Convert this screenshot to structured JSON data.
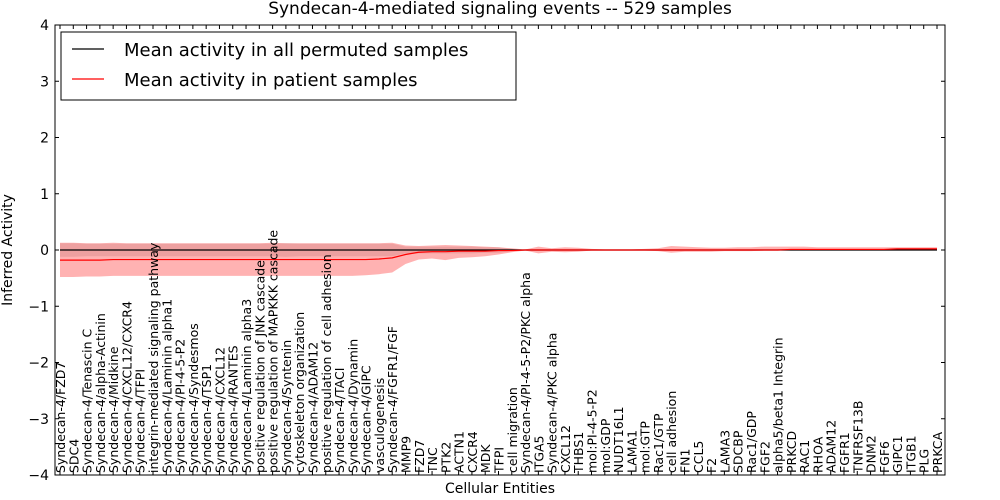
{
  "chart_data": {
    "type": "line",
    "title": "Syndecan-4-mediated signaling events -- 529 samples",
    "xlabel": "Cellular Entities",
    "ylabel": "Inferred Activity",
    "ylim": [
      -4,
      4
    ],
    "yticks": [
      -4,
      -3,
      -2,
      -1,
      0,
      1,
      2,
      3,
      4
    ],
    "ytick_labels": [
      "−4",
      "−3",
      "−2",
      "−1",
      "0",
      "1",
      "2",
      "3",
      "4"
    ],
    "legend_position": "top-left",
    "categories": [
      "Syndecan-4/FZD7",
      "SDC4",
      "Syndecan-4/Tenascin C",
      "Syndecan-4/alpha-Actinin",
      "Syndecan-4/Midkine",
      "Syndecan-4/CXCL12/CXCR4",
      "Syndecan-4/TFPI",
      "integrin-mediated signaling pathway",
      "Syndecan-4/Laminin alpha1",
      "Syndecan-4/PI-4-5-P2",
      "Syndecan-4/Syndesmos",
      "Syndecan-4/TSP1",
      "Syndecan-4/CXCL12",
      "Syndecan-4/RANTES",
      "Syndecan-4/Laminin alpha3",
      "positive regulation of JNK cascade",
      "positive regulation of MAPKKK cascade",
      "Syndecan-4/Syntenin",
      "cytoskeleton organization",
      "Syndecan-4/ADAM12",
      "positive regulation of cell adhesion",
      "Syndecan-4/TACI",
      "Syndecan-4/Dynamin",
      "Syndecan-4/GIPC",
      "vasculogenesis",
      "Syndecan-4/FGFR1/FGF",
      "MMP9",
      "FZD7",
      "TNC",
      "PTK2",
      "ACTN1",
      "CXCR4",
      "MDK",
      "TFPI",
      "cell migration",
      "Syndecan-4/PI-4-5-P2/PKC alpha",
      "ITGA5",
      "Syndecan-4/PKC alpha",
      "CXCL12",
      "THBS1",
      "mol:PI-4-5-P2",
      "mol:GDP",
      "NUDT16L1",
      "LAMA1",
      "mol:GTP",
      "Rac1/GTP",
      "cell adhesion",
      "FN1",
      "CCL5",
      "F2",
      "LAMA3",
      "SDCBP",
      "Rac1/GDP",
      "FGF2",
      "alpha5/beta1 Integrin",
      "PRKCD",
      "RAC1",
      "RHOA",
      "ADAM12",
      "FGFR1",
      "TNFRSF13B",
      "DNM2",
      "FGF6",
      "GIPC1",
      "ITGB1",
      "PLG",
      "PRKCA"
    ],
    "series": [
      {
        "name": "Mean activity in all permuted samples",
        "color": "#000000",
        "values": [
          0.0,
          0.0,
          0.0,
          0.0,
          0.0,
          0.0,
          0.0,
          0.0,
          0.0,
          0.0,
          0.0,
          0.0,
          0.0,
          0.0,
          0.0,
          0.0,
          0.0,
          0.0,
          0.0,
          0.0,
          0.0,
          0.0,
          0.0,
          0.0,
          0.0,
          0.0,
          0.0,
          0.0,
          0.0,
          0.0,
          0.0,
          0.0,
          0.0,
          0.0,
          0.0,
          0.0,
          0.0,
          0.0,
          0.0,
          0.0,
          0.0,
          0.0,
          0.0,
          0.0,
          0.0,
          0.0,
          0.0,
          0.0,
          0.0,
          0.0,
          0.0,
          0.0,
          0.0,
          0.0,
          0.0,
          0.0,
          0.0,
          0.0,
          0.0,
          0.0,
          0.0,
          0.0,
          0.0,
          0.0,
          0.0,
          0.0,
          0.0
        ],
        "band_upper": [
          0.12,
          0.12,
          0.11,
          0.11,
          0.11,
          0.11,
          0.11,
          0.11,
          0.11,
          0.11,
          0.11,
          0.11,
          0.11,
          0.11,
          0.11,
          0.11,
          0.11,
          0.12,
          0.11,
          0.11,
          0.11,
          0.11,
          0.11,
          0.11,
          0.11,
          0.11,
          0.06,
          0.06,
          0.06,
          0.06,
          0.06,
          0.06,
          0.05,
          0.05,
          0.02,
          0.0,
          0.0,
          0.0,
          0.0,
          0.0,
          0.0,
          0.0,
          0.0,
          0.0,
          0.0,
          0.0,
          0.0,
          0.0,
          0.0,
          0.0,
          0.0,
          0.0,
          0.0,
          0.0,
          0.0,
          0.0,
          0.0,
          0.0,
          0.0,
          0.0,
          0.0,
          0.0,
          0.0,
          0.0,
          0.0,
          0.0,
          0.0
        ],
        "band_lower": [
          -0.12,
          -0.12,
          -0.11,
          -0.11,
          -0.11,
          -0.11,
          -0.11,
          -0.11,
          -0.11,
          -0.11,
          -0.11,
          -0.11,
          -0.11,
          -0.11,
          -0.11,
          -0.11,
          -0.11,
          -0.12,
          -0.11,
          -0.11,
          -0.11,
          -0.11,
          -0.11,
          -0.11,
          -0.11,
          -0.11,
          -0.06,
          -0.06,
          -0.06,
          -0.06,
          -0.06,
          -0.06,
          -0.05,
          -0.05,
          -0.02,
          0.0,
          0.0,
          0.0,
          0.0,
          0.0,
          0.0,
          0.0,
          0.0,
          0.0,
          0.0,
          0.0,
          0.0,
          0.0,
          0.0,
          0.0,
          0.0,
          0.0,
          0.0,
          0.0,
          0.0,
          0.0,
          0.0,
          0.0,
          0.0,
          0.0,
          0.0,
          0.0,
          0.0,
          0.0,
          0.0,
          0.0,
          0.0
        ]
      },
      {
        "name": "Mean activity in patient samples",
        "color": "#ff0000",
        "band_color": "#ff0000",
        "values": [
          -0.18,
          -0.18,
          -0.18,
          -0.18,
          -0.17,
          -0.17,
          -0.17,
          -0.17,
          -0.17,
          -0.17,
          -0.17,
          -0.17,
          -0.17,
          -0.17,
          -0.17,
          -0.17,
          -0.17,
          -0.17,
          -0.17,
          -0.17,
          -0.17,
          -0.17,
          -0.17,
          -0.17,
          -0.16,
          -0.14,
          -0.08,
          -0.04,
          -0.03,
          -0.03,
          -0.02,
          -0.02,
          -0.02,
          -0.01,
          -0.01,
          0.0,
          0.0,
          0.0,
          0.0,
          0.0,
          0.0,
          0.0,
          0.0,
          0.0,
          0.0,
          0.0,
          0.0,
          0.0,
          0.0,
          0.0,
          0.0,
          0.0,
          0.0,
          0.0,
          0.0,
          0.01,
          0.01,
          0.01,
          0.01,
          0.01,
          0.01,
          0.01,
          0.01,
          0.02,
          0.02,
          0.02,
          0.02
        ],
        "band_upper": [
          0.13,
          0.13,
          0.12,
          0.12,
          0.13,
          0.12,
          0.12,
          0.12,
          0.12,
          0.12,
          0.12,
          0.12,
          0.12,
          0.12,
          0.12,
          0.12,
          0.13,
          0.12,
          0.12,
          0.12,
          0.12,
          0.12,
          0.12,
          0.12,
          0.12,
          0.13,
          0.08,
          0.07,
          0.08,
          0.09,
          0.08,
          0.07,
          0.06,
          0.05,
          0.03,
          0.01,
          0.06,
          0.03,
          0.05,
          0.04,
          0.02,
          0.01,
          0.01,
          0.01,
          0.02,
          0.03,
          0.07,
          0.06,
          0.05,
          0.04,
          0.04,
          0.05,
          0.05,
          0.06,
          0.06,
          0.06,
          0.06,
          0.05,
          0.05,
          0.05,
          0.05,
          0.05,
          0.05,
          0.05,
          0.05,
          0.05,
          0.05
        ],
        "band_lower": [
          -0.48,
          -0.48,
          -0.47,
          -0.47,
          -0.46,
          -0.46,
          -0.46,
          -0.46,
          -0.46,
          -0.46,
          -0.46,
          -0.46,
          -0.46,
          -0.46,
          -0.46,
          -0.46,
          -0.46,
          -0.46,
          -0.46,
          -0.46,
          -0.46,
          -0.46,
          -0.46,
          -0.45,
          -0.43,
          -0.4,
          -0.25,
          -0.17,
          -0.15,
          -0.18,
          -0.14,
          -0.13,
          -0.11,
          -0.08,
          -0.04,
          -0.01,
          -0.06,
          -0.03,
          -0.04,
          -0.03,
          -0.01,
          -0.01,
          -0.01,
          -0.01,
          -0.01,
          -0.02,
          -0.05,
          -0.03,
          -0.03,
          -0.03,
          -0.02,
          -0.02,
          -0.02,
          -0.01,
          -0.01,
          -0.01,
          -0.01,
          -0.01,
          -0.01,
          -0.01,
          -0.01,
          -0.01,
          -0.01,
          -0.01,
          -0.01,
          -0.01,
          -0.01
        ]
      }
    ]
  }
}
